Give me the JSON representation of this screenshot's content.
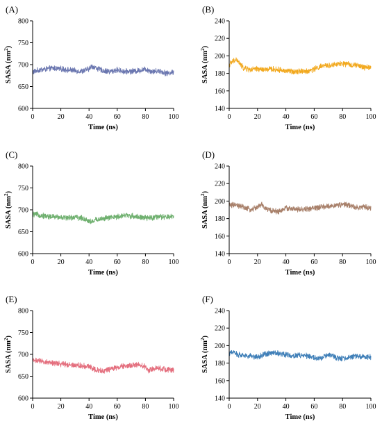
{
  "chart_data": [
    {
      "type": "line",
      "panel": "(A)",
      "xlabel": "Time (ns)",
      "ylabel": "SASA (nm",
      "ylabel_sup": "2",
      "ylabel_close": ")",
      "xlim": [
        0,
        100
      ],
      "ylim": [
        600,
        800
      ],
      "xticks": [
        0,
        20,
        40,
        60,
        80,
        100
      ],
      "yticks": [
        600,
        650,
        700,
        750,
        800
      ],
      "color": "#6b77b0",
      "series": [
        {
          "x": [
            0,
            5,
            10,
            15,
            20,
            25,
            30,
            35,
            40,
            42,
            45,
            50,
            55,
            60,
            65,
            70,
            75,
            80,
            85,
            90,
            95,
            100
          ],
          "values": [
            683,
            688,
            690,
            692,
            690,
            688,
            686,
            685,
            690,
            697,
            692,
            686,
            684,
            688,
            684,
            685,
            686,
            690,
            684,
            686,
            680,
            683
          ]
        }
      ]
    },
    {
      "type": "line",
      "panel": "(B)",
      "xlabel": "Time (ns)",
      "ylabel": "SASA (nm",
      "ylabel_sup": "2",
      "ylabel_close": ")",
      "xlim": [
        0,
        100
      ],
      "ylim": [
        140,
        240
      ],
      "xticks": [
        0,
        20,
        40,
        60,
        80,
        100
      ],
      "yticks": [
        140,
        160,
        180,
        200,
        220,
        240
      ],
      "color": "#f2a91f",
      "series": [
        {
          "x": [
            0,
            3,
            5,
            8,
            10,
            15,
            20,
            25,
            30,
            35,
            40,
            45,
            50,
            55,
            60,
            65,
            70,
            75,
            80,
            85,
            90,
            95,
            100
          ],
          "values": [
            190,
            194,
            196,
            190,
            186,
            184,
            185,
            184,
            185,
            184,
            183,
            182,
            183,
            182,
            185,
            188,
            189,
            190,
            191,
            190,
            189,
            187,
            187
          ]
        }
      ]
    },
    {
      "type": "line",
      "panel": "(C)",
      "xlabel": "Time (ns)",
      "ylabel": "SASA (nm",
      "ylabel_sup": "2",
      "ylabel_close": ")",
      "xlim": [
        0,
        100
      ],
      "ylim": [
        600,
        800
      ],
      "xticks": [
        0,
        20,
        40,
        60,
        80,
        100
      ],
      "yticks": [
        600,
        650,
        700,
        750,
        800
      ],
      "color": "#6fb06f",
      "series": [
        {
          "x": [
            0,
            5,
            10,
            15,
            20,
            25,
            30,
            35,
            40,
            42,
            45,
            50,
            55,
            60,
            65,
            70,
            75,
            80,
            85,
            90,
            95,
            100
          ],
          "values": [
            690,
            688,
            685,
            684,
            683,
            682,
            683,
            681,
            675,
            672,
            678,
            680,
            682,
            684,
            688,
            686,
            684,
            681,
            682,
            684,
            683,
            685
          ]
        }
      ]
    },
    {
      "type": "line",
      "panel": "(D)",
      "xlabel": "Time (ns)",
      "ylabel": "SASA (nm",
      "ylabel_sup": "2",
      "ylabel_close": ")",
      "xlim": [
        0,
        100
      ],
      "ylim": [
        140,
        240
      ],
      "xticks": [
        0,
        20,
        40,
        60,
        80,
        100
      ],
      "yticks": [
        140,
        160,
        180,
        200,
        220,
        240
      ],
      "color": "#a8806a",
      "series": [
        {
          "x": [
            0,
            5,
            10,
            15,
            20,
            23,
            25,
            30,
            35,
            40,
            45,
            50,
            55,
            60,
            65,
            70,
            75,
            80,
            85,
            90,
            95,
            100
          ],
          "values": [
            196,
            195,
            193,
            190,
            193,
            196,
            192,
            189,
            188,
            192,
            191,
            190,
            191,
            192,
            193,
            194,
            195,
            196,
            195,
            193,
            193,
            192
          ]
        }
      ]
    },
    {
      "type": "line",
      "panel": "(E)",
      "xlabel": "Time (ns)",
      "ylabel": "SASA (nm",
      "ylabel_sup": "2",
      "ylabel_close": ")",
      "xlim": [
        0,
        100
      ],
      "ylim": [
        600,
        800
      ],
      "xticks": [
        0,
        20,
        40,
        60,
        80,
        100
      ],
      "yticks": [
        600,
        650,
        700,
        750,
        800
      ],
      "color": "#e46f7e",
      "series": [
        {
          "x": [
            0,
            5,
            10,
            15,
            20,
            25,
            30,
            35,
            40,
            45,
            50,
            55,
            60,
            65,
            70,
            75,
            80,
            82,
            85,
            90,
            95,
            100
          ],
          "values": [
            688,
            684,
            682,
            680,
            678,
            677,
            676,
            674,
            672,
            665,
            662,
            666,
            670,
            673,
            675,
            676,
            672,
            662,
            668,
            668,
            665,
            664
          ]
        }
      ]
    },
    {
      "type": "line",
      "panel": "(F)",
      "xlabel": "Time (ns)",
      "ylabel": "SASA (nm",
      "ylabel_sup": "2",
      "ylabel_close": ")",
      "xlim": [
        0,
        100
      ],
      "ylim": [
        140,
        240
      ],
      "xticks": [
        0,
        20,
        40,
        60,
        80,
        100
      ],
      "yticks": [
        140,
        160,
        180,
        200,
        220,
        240
      ],
      "color": "#3f7fb8",
      "series": [
        {
          "x": [
            0,
            3,
            5,
            10,
            15,
            20,
            25,
            30,
            35,
            40,
            45,
            50,
            55,
            60,
            65,
            70,
            75,
            80,
            85,
            90,
            95,
            100
          ],
          "values": [
            190,
            194,
            190,
            189,
            188,
            187,
            190,
            192,
            191,
            190,
            188,
            189,
            188,
            186,
            185,
            190,
            186,
            185,
            187,
            188,
            187,
            187
          ]
        }
      ]
    }
  ]
}
